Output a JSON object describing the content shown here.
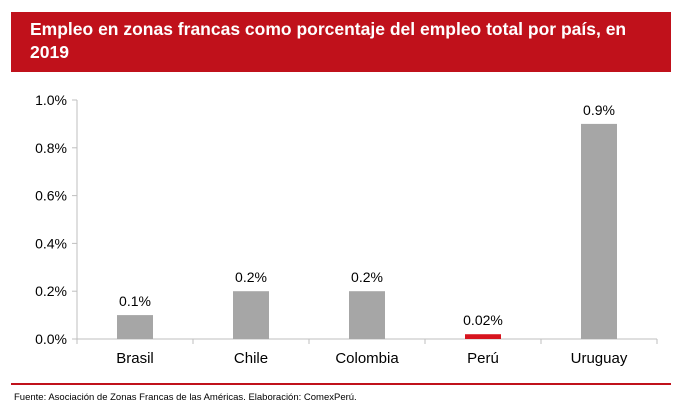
{
  "colors": {
    "accent": "#c0111b",
    "bar_default": "#a6a6a6",
    "bar_highlight": "#d7141e",
    "axis": "#bfbfbf"
  },
  "header": {
    "title": "Empleo en zonas francas como porcentaje del empleo total por país, en 2019"
  },
  "footer": {
    "source": "Fuente: Asociación de Zonas Francas de las Américas. Elaboración: ComexPerú."
  },
  "chart_data": {
    "type": "bar",
    "title": "Empleo en zonas francas como porcentaje del empleo total por país, en 2019",
    "xlabel": "",
    "ylabel": "",
    "categories": [
      "Brasil",
      "Chile",
      "Colombia",
      "Perú",
      "Uruguay"
    ],
    "values": [
      0.1,
      0.2,
      0.2,
      0.02,
      0.9
    ],
    "data_labels": [
      "0.1%",
      "0.2%",
      "0.2%",
      "0.02%",
      "0.9%"
    ],
    "highlight": "Perú",
    "ylim": [
      0,
      1.0
    ],
    "yticks": [
      0,
      0.2,
      0.4,
      0.6,
      0.8,
      1.0
    ],
    "ytick_labels": [
      "0.0%",
      "0.2%",
      "0.4%",
      "0.6%",
      "0.8%",
      "1.0%"
    ],
    "grid": false,
    "legend": "none"
  }
}
